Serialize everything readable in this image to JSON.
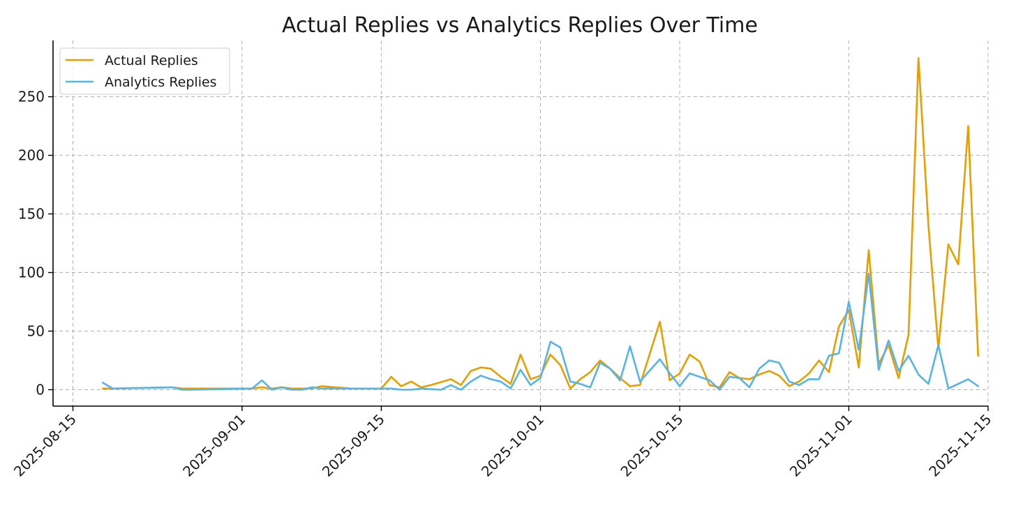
{
  "chart_data": {
    "type": "line",
    "title": "Actual Replies vs Analytics Replies Over Time",
    "xlabel": "",
    "ylabel": "",
    "x_range": [
      "2025-08-13",
      "2025-11-15"
    ],
    "ylim": [
      -14,
      298
    ],
    "x_ticks": [
      "2025-08-15",
      "2025-09-01",
      "2025-09-15",
      "2025-10-01",
      "2025-10-15",
      "2025-11-01",
      "2025-11-15"
    ],
    "y_ticks": [
      0,
      50,
      100,
      150,
      200,
      250
    ],
    "grid": true,
    "legend_position": "top-left",
    "series": [
      {
        "name": "Actual Replies",
        "color": "#E69F00",
        "points": [
          [
            "2025-08-18",
            1
          ],
          [
            "2025-08-19",
            1
          ],
          [
            "2025-08-25",
            2
          ],
          [
            "2025-08-26",
            1
          ],
          [
            "2025-09-02",
            1
          ],
          [
            "2025-09-03",
            2
          ],
          [
            "2025-09-04",
            1
          ],
          [
            "2025-09-05",
            2
          ],
          [
            "2025-09-06",
            1
          ],
          [
            "2025-09-07",
            1
          ],
          [
            "2025-09-08",
            1
          ],
          [
            "2025-09-09",
            3
          ],
          [
            "2025-09-12",
            1
          ],
          [
            "2025-09-15",
            1
          ],
          [
            "2025-09-16",
            11
          ],
          [
            "2025-09-17",
            3
          ],
          [
            "2025-09-18",
            7
          ],
          [
            "2025-09-19",
            2
          ],
          [
            "2025-09-20",
            4
          ],
          [
            "2025-09-22",
            9
          ],
          [
            "2025-09-23",
            4
          ],
          [
            "2025-09-24",
            16
          ],
          [
            "2025-09-25",
            19
          ],
          [
            "2025-09-26",
            18
          ],
          [
            "2025-09-27",
            11
          ],
          [
            "2025-09-28",
            5
          ],
          [
            "2025-09-29",
            30
          ],
          [
            "2025-09-30",
            9
          ],
          [
            "2025-10-01",
            12
          ],
          [
            "2025-10-02",
            30
          ],
          [
            "2025-10-03",
            21
          ],
          [
            "2025-10-04",
            1
          ],
          [
            "2025-10-05",
            9
          ],
          [
            "2025-10-06",
            15
          ],
          [
            "2025-10-07",
            25
          ],
          [
            "2025-10-08",
            18
          ],
          [
            "2025-10-09",
            10
          ],
          [
            "2025-10-10",
            3
          ],
          [
            "2025-10-11",
            4
          ],
          [
            "2025-10-13",
            58
          ],
          [
            "2025-10-14",
            8
          ],
          [
            "2025-10-15",
            14
          ],
          [
            "2025-10-16",
            30
          ],
          [
            "2025-10-17",
            24
          ],
          [
            "2025-10-18",
            4
          ],
          [
            "2025-10-19",
            2
          ],
          [
            "2025-10-20",
            15
          ],
          [
            "2025-10-21",
            10
          ],
          [
            "2025-10-22",
            9
          ],
          [
            "2025-10-23",
            13
          ],
          [
            "2025-10-24",
            16
          ],
          [
            "2025-10-25",
            12
          ],
          [
            "2025-10-26",
            3
          ],
          [
            "2025-10-27",
            7
          ],
          [
            "2025-10-28",
            14
          ],
          [
            "2025-10-29",
            25
          ],
          [
            "2025-10-30",
            15
          ],
          [
            "2025-10-31",
            54
          ],
          [
            "2025-11-01",
            68
          ],
          [
            "2025-11-02",
            19
          ],
          [
            "2025-11-03",
            119
          ],
          [
            "2025-11-04",
            22
          ],
          [
            "2025-11-05",
            38
          ],
          [
            "2025-11-06",
            10
          ],
          [
            "2025-11-07",
            47
          ],
          [
            "2025-11-08",
            283
          ],
          [
            "2025-11-09",
            140
          ],
          [
            "2025-11-10",
            35
          ],
          [
            "2025-11-11",
            124
          ],
          [
            "2025-11-12",
            107
          ],
          [
            "2025-11-13",
            225
          ],
          [
            "2025-11-14",
            29
          ]
        ]
      },
      {
        "name": "Analytics Replies",
        "color": "#56B4E9",
        "points": [
          [
            "2025-08-18",
            6
          ],
          [
            "2025-08-19",
            1
          ],
          [
            "2025-08-25",
            2
          ],
          [
            "2025-08-26",
            0
          ],
          [
            "2025-08-27",
            0
          ],
          [
            "2025-09-02",
            1
          ],
          [
            "2025-09-03",
            8
          ],
          [
            "2025-09-04",
            0
          ],
          [
            "2025-09-05",
            2
          ],
          [
            "2025-09-06",
            0
          ],
          [
            "2025-09-07",
            0
          ],
          [
            "2025-09-08",
            2
          ],
          [
            "2025-09-09",
            1
          ],
          [
            "2025-09-12",
            1
          ],
          [
            "2025-09-15",
            1
          ],
          [
            "2025-09-16",
            1
          ],
          [
            "2025-09-17",
            0
          ],
          [
            "2025-09-18",
            0
          ],
          [
            "2025-09-19",
            1
          ],
          [
            "2025-09-21",
            0
          ],
          [
            "2025-09-22",
            4
          ],
          [
            "2025-09-23",
            0
          ],
          [
            "2025-09-24",
            7
          ],
          [
            "2025-09-25",
            12
          ],
          [
            "2025-09-26",
            9
          ],
          [
            "2025-09-27",
            7
          ],
          [
            "2025-09-28",
            1
          ],
          [
            "2025-09-29",
            17
          ],
          [
            "2025-09-30",
            4
          ],
          [
            "2025-10-01",
            10
          ],
          [
            "2025-10-02",
            41
          ],
          [
            "2025-10-03",
            36
          ],
          [
            "2025-10-04",
            7
          ],
          [
            "2025-10-05",
            5
          ],
          [
            "2025-10-06",
            2
          ],
          [
            "2025-10-07",
            23
          ],
          [
            "2025-10-08",
            18
          ],
          [
            "2025-10-09",
            8
          ],
          [
            "2025-10-10",
            37
          ],
          [
            "2025-10-11",
            7
          ],
          [
            "2025-10-13",
            26
          ],
          [
            "2025-10-14",
            14
          ],
          [
            "2025-10-15",
            3
          ],
          [
            "2025-10-16",
            14
          ],
          [
            "2025-10-17",
            11
          ],
          [
            "2025-10-18",
            8
          ],
          [
            "2025-10-19",
            0
          ],
          [
            "2025-10-20",
            11
          ],
          [
            "2025-10-21",
            10
          ],
          [
            "2025-10-22",
            2
          ],
          [
            "2025-10-23",
            18
          ],
          [
            "2025-10-24",
            25
          ],
          [
            "2025-10-25",
            23
          ],
          [
            "2025-10-26",
            7
          ],
          [
            "2025-10-27",
            4
          ],
          [
            "2025-10-28",
            9
          ],
          [
            "2025-10-29",
            9
          ],
          [
            "2025-10-30",
            29
          ],
          [
            "2025-10-31",
            31
          ],
          [
            "2025-11-01",
            75
          ],
          [
            "2025-11-02",
            34
          ],
          [
            "2025-11-03",
            99
          ],
          [
            "2025-11-04",
            17
          ],
          [
            "2025-11-05",
            42
          ],
          [
            "2025-11-06",
            16
          ],
          [
            "2025-11-07",
            29
          ],
          [
            "2025-11-08",
            13
          ],
          [
            "2025-11-09",
            5
          ],
          [
            "2025-11-10",
            38
          ],
          [
            "2025-11-11",
            1
          ],
          [
            "2025-11-12",
            5
          ],
          [
            "2025-11-13",
            9
          ],
          [
            "2025-11-14",
            3
          ]
        ]
      }
    ]
  }
}
